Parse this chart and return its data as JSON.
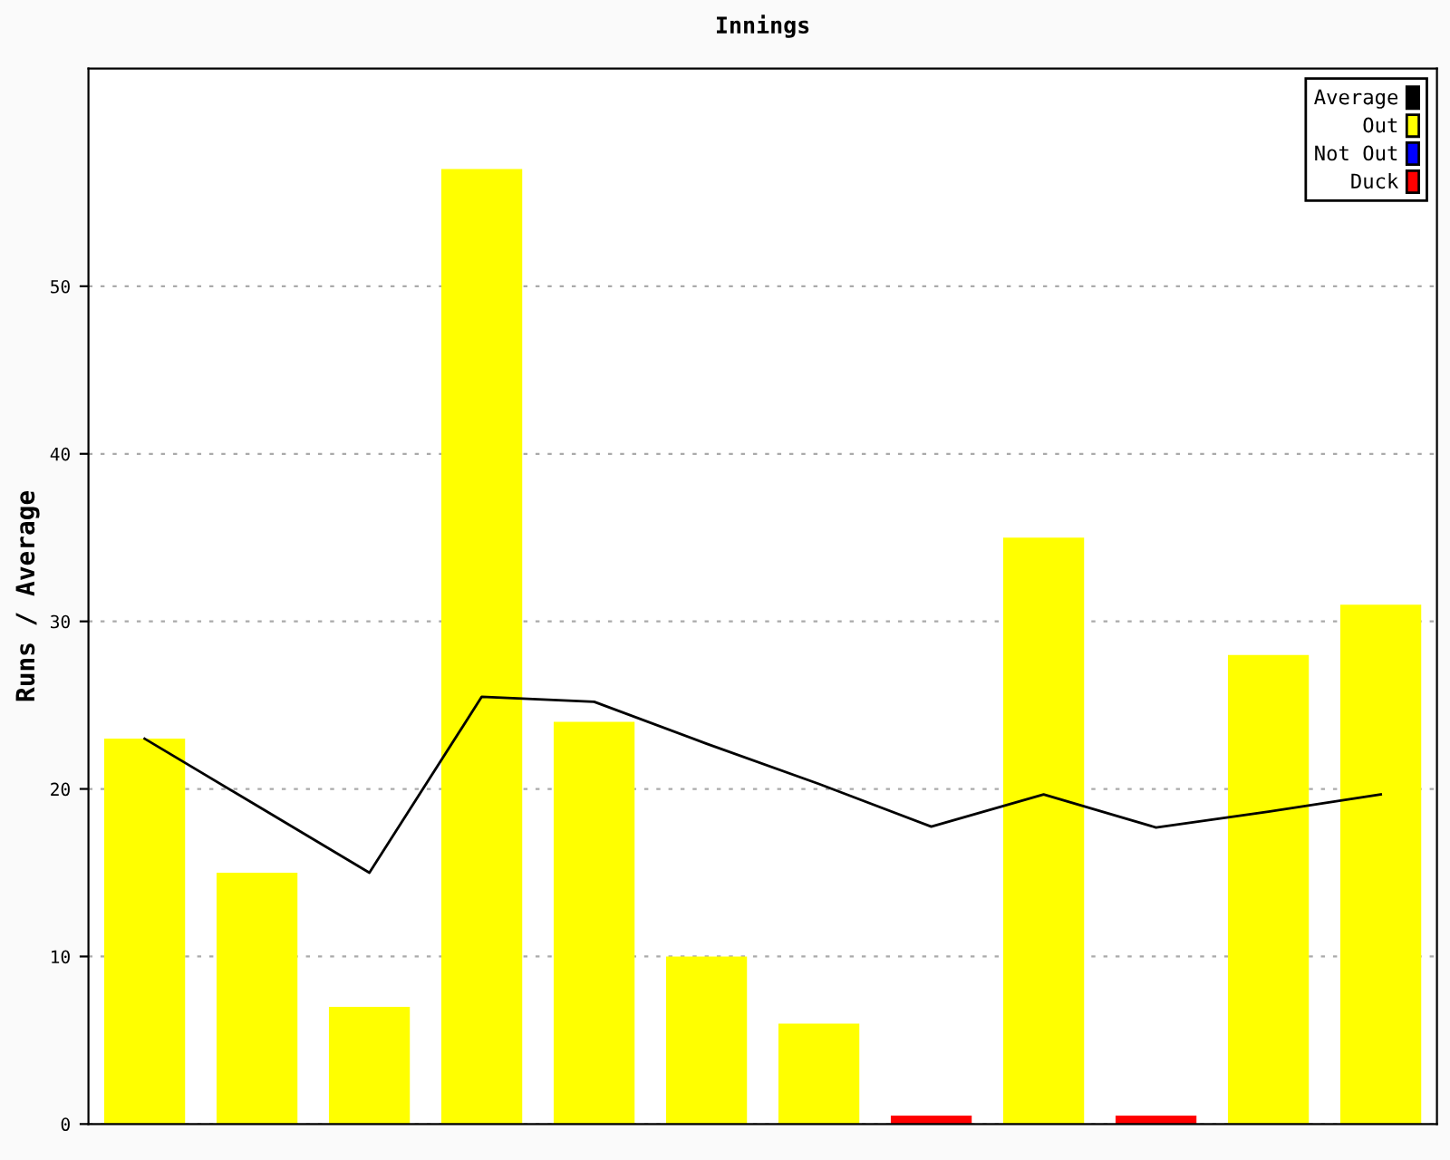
{
  "chart_data": {
    "type": "bar",
    "title": "Innings",
    "ylabel": "Runs / Average",
    "categories": [
      null,
      null,
      null,
      null,
      null,
      null,
      null,
      null,
      null,
      null,
      null,
      null
    ],
    "series": [
      {
        "name": "Average",
        "type": "line",
        "color": "#000000",
        "values": [
          23,
          19,
          15,
          25.5,
          25.2,
          22.7,
          20.3,
          17.75,
          19.67,
          17.7,
          18.64,
          19.67
        ]
      },
      {
        "name": "Out",
        "color": "#ffff00",
        "values": [
          23,
          15,
          7,
          57,
          24,
          10,
          6,
          null,
          35,
          null,
          28,
          31
        ]
      },
      {
        "name": "Not Out",
        "color": "#0000ff",
        "values": [
          null,
          null,
          null,
          null,
          null,
          null,
          null,
          null,
          null,
          null,
          null,
          null
        ]
      },
      {
        "name": "Duck",
        "color": "#ff0000",
        "values": [
          null,
          null,
          null,
          null,
          null,
          null,
          null,
          0.5,
          null,
          0.5,
          null,
          null
        ]
      }
    ],
    "ylim": [
      0,
      63
    ],
    "yticks": [
      0,
      10,
      20,
      30,
      40,
      50
    ],
    "grid": "y",
    "legend": "top right"
  }
}
